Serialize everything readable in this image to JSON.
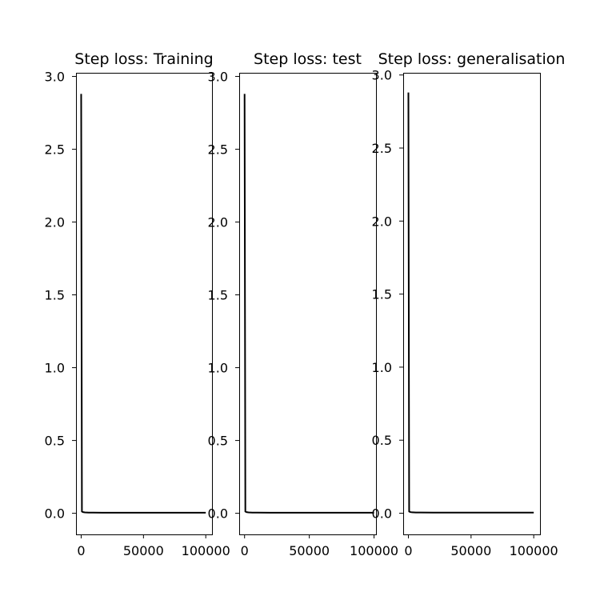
{
  "figure": {
    "background": "#ffffff",
    "line_color": "#000000"
  },
  "chart_data": [
    {
      "type": "line",
      "title": "Step loss: Training",
      "xlabel": "",
      "ylabel": "",
      "xlim": [
        -4150,
        105000
      ],
      "ylim": [
        -0.145,
        3.025
      ],
      "x_ticks": [
        0,
        50000,
        100000
      ],
      "x_tick_labels": [
        "0",
        "50000",
        "100000"
      ],
      "y_ticks": [
        0.0,
        0.5,
        1.0,
        1.5,
        2.0,
        2.5,
        3.0
      ],
      "y_tick_labels": [
        "0.0",
        "0.5",
        "1.0",
        "1.5",
        "2.0",
        "2.5",
        "3.0"
      ],
      "grid": false,
      "series": [
        {
          "x": [
            0,
            600,
            1500,
            3000,
            6000,
            10000,
            20000,
            40000,
            60000,
            80000,
            100000
          ],
          "y": [
            2.88,
            0.012,
            0.008,
            0.006,
            0.005,
            0.005,
            0.004,
            0.004,
            0.004,
            0.004,
            0.004
          ]
        }
      ]
    },
    {
      "type": "line",
      "title": "Step loss: test",
      "xlabel": "",
      "ylabel": "",
      "xlim": [
        -4150,
        101500
      ],
      "ylim": [
        -0.145,
        3.025
      ],
      "x_ticks": [
        0,
        50000,
        100000
      ],
      "x_tick_labels": [
        "0",
        "50000",
        "100000"
      ],
      "y_ticks": [
        0.0,
        0.5,
        1.0,
        1.5,
        2.0,
        2.5,
        3.0
      ],
      "y_tick_labels": [
        "0.0",
        "0.5",
        "1.0",
        "1.5",
        "2.0",
        "2.5",
        "3.0"
      ],
      "grid": false,
      "series": [
        {
          "x": [
            0,
            600,
            1500,
            3000,
            6000,
            10000,
            20000,
            40000,
            60000,
            80000,
            100000
          ],
          "y": [
            2.88,
            0.012,
            0.008,
            0.006,
            0.005,
            0.005,
            0.004,
            0.004,
            0.004,
            0.004,
            0.004
          ]
        }
      ]
    },
    {
      "type": "line",
      "title": "Step loss: generalisation",
      "xlabel": "",
      "ylabel": "",
      "xlim": [
        -4150,
        105000
      ],
      "ylim": [
        -0.145,
        3.015
      ],
      "x_ticks": [
        0,
        50000,
        100000
      ],
      "x_tick_labels": [
        "0",
        "50000",
        "100000"
      ],
      "y_ticks": [
        0.0,
        0.5,
        1.0,
        1.5,
        2.0,
        2.5,
        3.0
      ],
      "y_tick_labels": [
        "0.0",
        "0.5",
        "1.0",
        "1.5",
        "2.0",
        "2.5",
        "3.0"
      ],
      "grid": false,
      "series": [
        {
          "x": [
            0,
            600,
            1500,
            3000,
            6000,
            10000,
            20000,
            40000,
            60000,
            80000,
            100000
          ],
          "y": [
            2.88,
            0.012,
            0.008,
            0.006,
            0.005,
            0.005,
            0.004,
            0.004,
            0.004,
            0.004,
            0.004
          ]
        }
      ]
    }
  ]
}
